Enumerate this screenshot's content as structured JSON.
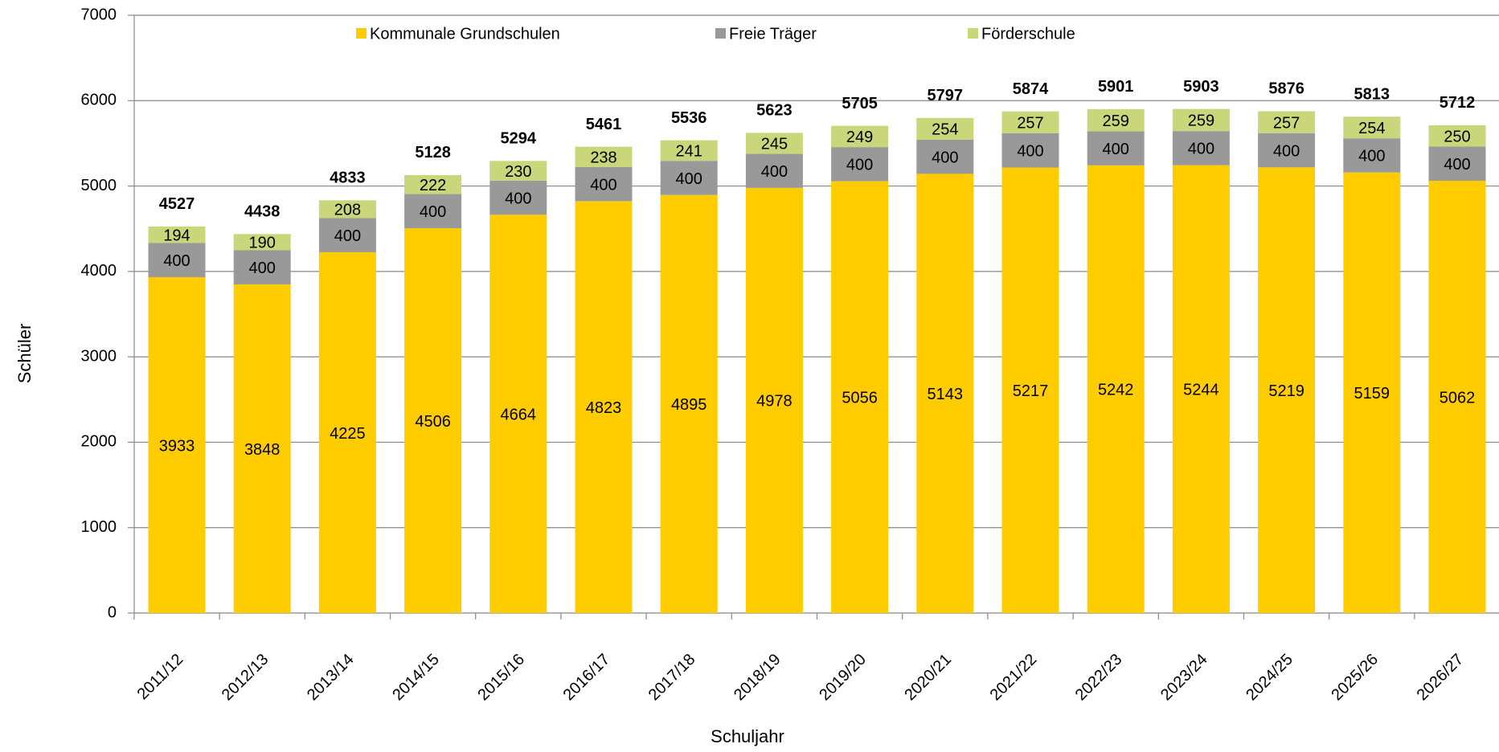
{
  "chart_data": {
    "type": "stacked_bar",
    "xlabel": "Schuljahr",
    "ylabel": "Schüler",
    "categories": [
      "2011/12",
      "2012/13",
      "2013/14",
      "2014/15",
      "2015/16",
      "2016/17",
      "2017/18",
      "2018/19",
      "2019/20",
      "2020/21",
      "2021/22",
      "2022/23",
      "2023/24",
      "2024/25",
      "2025/26",
      "2026/27"
    ],
    "series": [
      {
        "name": "Kommunale Grundschulen",
        "color": "#ffcc00",
        "values": [
          3933,
          3848,
          4225,
          4506,
          4664,
          4823,
          4895,
          4978,
          5056,
          5143,
          5217,
          5242,
          5244,
          5219,
          5159,
          5062
        ]
      },
      {
        "name": "Freie Träger",
        "color": "#999999",
        "values": [
          400,
          400,
          400,
          400,
          400,
          400,
          400,
          400,
          400,
          400,
          400,
          400,
          400,
          400,
          400,
          400
        ]
      },
      {
        "name": "Förderschule",
        "color": "#c9d67a",
        "values": [
          194,
          190,
          208,
          222,
          230,
          238,
          241,
          245,
          249,
          254,
          257,
          259,
          259,
          257,
          254,
          250
        ]
      }
    ],
    "totals": [
      4527,
      4438,
      4833,
      5128,
      5294,
      5461,
      5536,
      5623,
      5705,
      5797,
      5874,
      5901,
      5903,
      5876,
      5813,
      5712
    ],
    "ylim": [
      0,
      7000
    ],
    "yticks": [
      0,
      1000,
      2000,
      3000,
      4000,
      5000,
      6000,
      7000
    ],
    "grid": true,
    "legend": "top"
  }
}
